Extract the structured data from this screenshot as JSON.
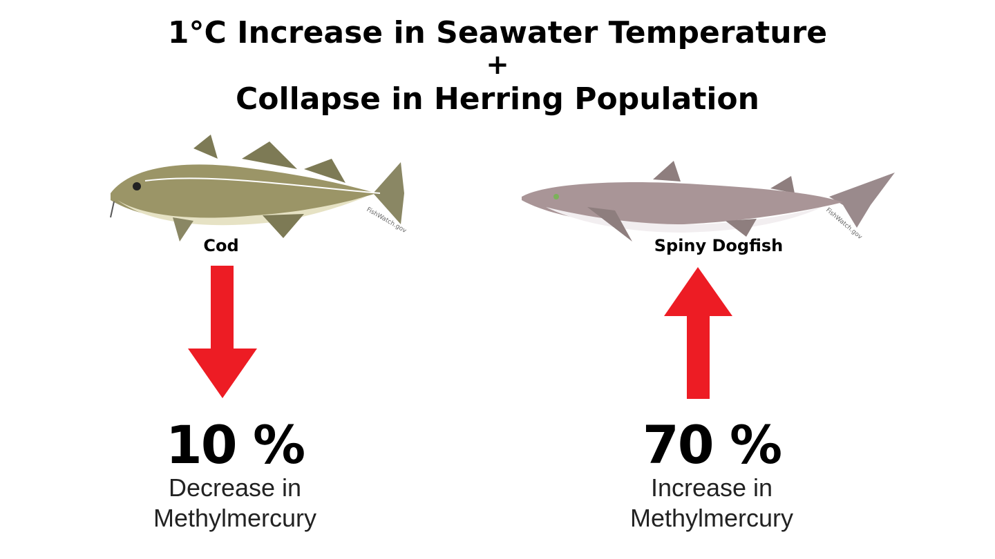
{
  "title": {
    "line1": "1°C Increase in Seawater Temperature",
    "plus": "+",
    "line2": "Collapse in Herring Population"
  },
  "colors": {
    "arrow": "#ed1c24"
  },
  "left": {
    "species": "Cod",
    "direction": "down",
    "percent": "10 %",
    "desc_line1": "Decrease in",
    "desc_line2": "Methylmercury",
    "watermark": "FishWatch.gov"
  },
  "right": {
    "species": "Spiny Dogfish",
    "direction": "up",
    "percent": "70 %",
    "desc_line1": "Increase in",
    "desc_line2": "Methylmercury",
    "watermark": "FishWatch.gov"
  }
}
